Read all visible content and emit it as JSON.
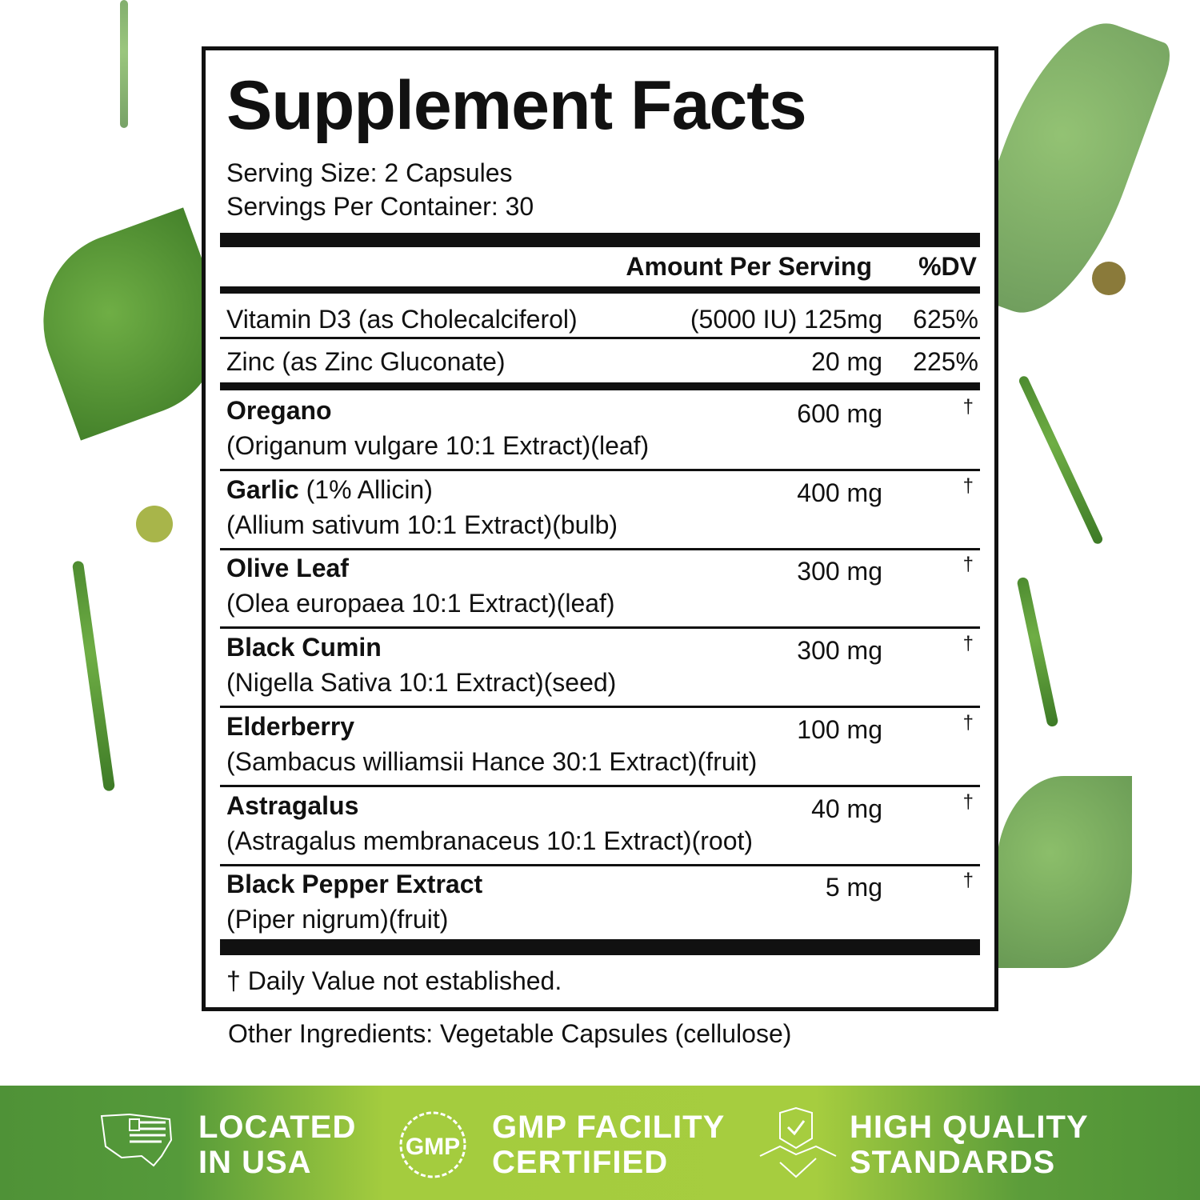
{
  "title": "Supplement Facts",
  "serving_size": "Serving Size: 2 Capsules",
  "servings_per_container": "Servings Per Container: 30",
  "header": {
    "amount": "Amount Per Serving",
    "dv": "%DV"
  },
  "vitamins": [
    {
      "name": "Vitamin D3 (as Cholecalciferol)",
      "amount": "(5000 IU) 125mg",
      "dv": "625%"
    },
    {
      "name": "Zinc (as Zinc Gluconate)",
      "amount": "20 mg",
      "dv": "225%"
    }
  ],
  "ingredients": [
    {
      "name": "Oregano",
      "note": "",
      "sub": "(Origanum vulgare 10:1 Extract)(leaf)",
      "amount": "600 mg",
      "dv": "†"
    },
    {
      "name": "Garlic",
      "note": " (1% Allicin)",
      "sub": "(Allium sativum 10:1 Extract)(bulb)",
      "amount": "400 mg",
      "dv": "†"
    },
    {
      "name": "Olive Leaf",
      "note": "",
      "sub": "(Olea europaea 10:1 Extract)(leaf)",
      "amount": "300 mg",
      "dv": "†"
    },
    {
      "name": "Black Cumin",
      "note": "",
      "sub": "(Nigella Sativa 10:1 Extract)(seed)",
      "amount": "300 mg",
      "dv": "†"
    },
    {
      "name": "Elderberry",
      "note": "",
      "sub": "(Sambacus williamsii Hance 30:1 Extract)(fruit)",
      "amount": "100 mg",
      "dv": "†"
    },
    {
      "name": "Astragalus",
      "note": "",
      "sub": "(Astragalus membranaceus 10:1 Extract)(root)",
      "amount": "40 mg",
      "dv": "†"
    },
    {
      "name": "Black Pepper Extract",
      "note": "",
      "sub": "(Piper nigrum)(fruit)",
      "amount": "5 mg",
      "dv": "†"
    }
  ],
  "footnote": "† Daily Value not established.",
  "other_ingredients": "Other Ingredients: Vegetable Capsules (cellulose)",
  "badges": [
    {
      "icon": "usa-map-flag-icon",
      "line1": "LOCATED",
      "line2": "IN USA"
    },
    {
      "icon": "gmp-seal-icon",
      "line1": "GMP FACILITY",
      "line2": "CERTIFIED",
      "seal_text": "GMP"
    },
    {
      "icon": "shield-handshake-icon",
      "line1": "HIGH QUALITY",
      "line2": "STANDARDS"
    }
  ],
  "colors": {
    "banner_dark": "#4f9237",
    "banner_light": "#a6cd3f",
    "text": "#111111"
  }
}
